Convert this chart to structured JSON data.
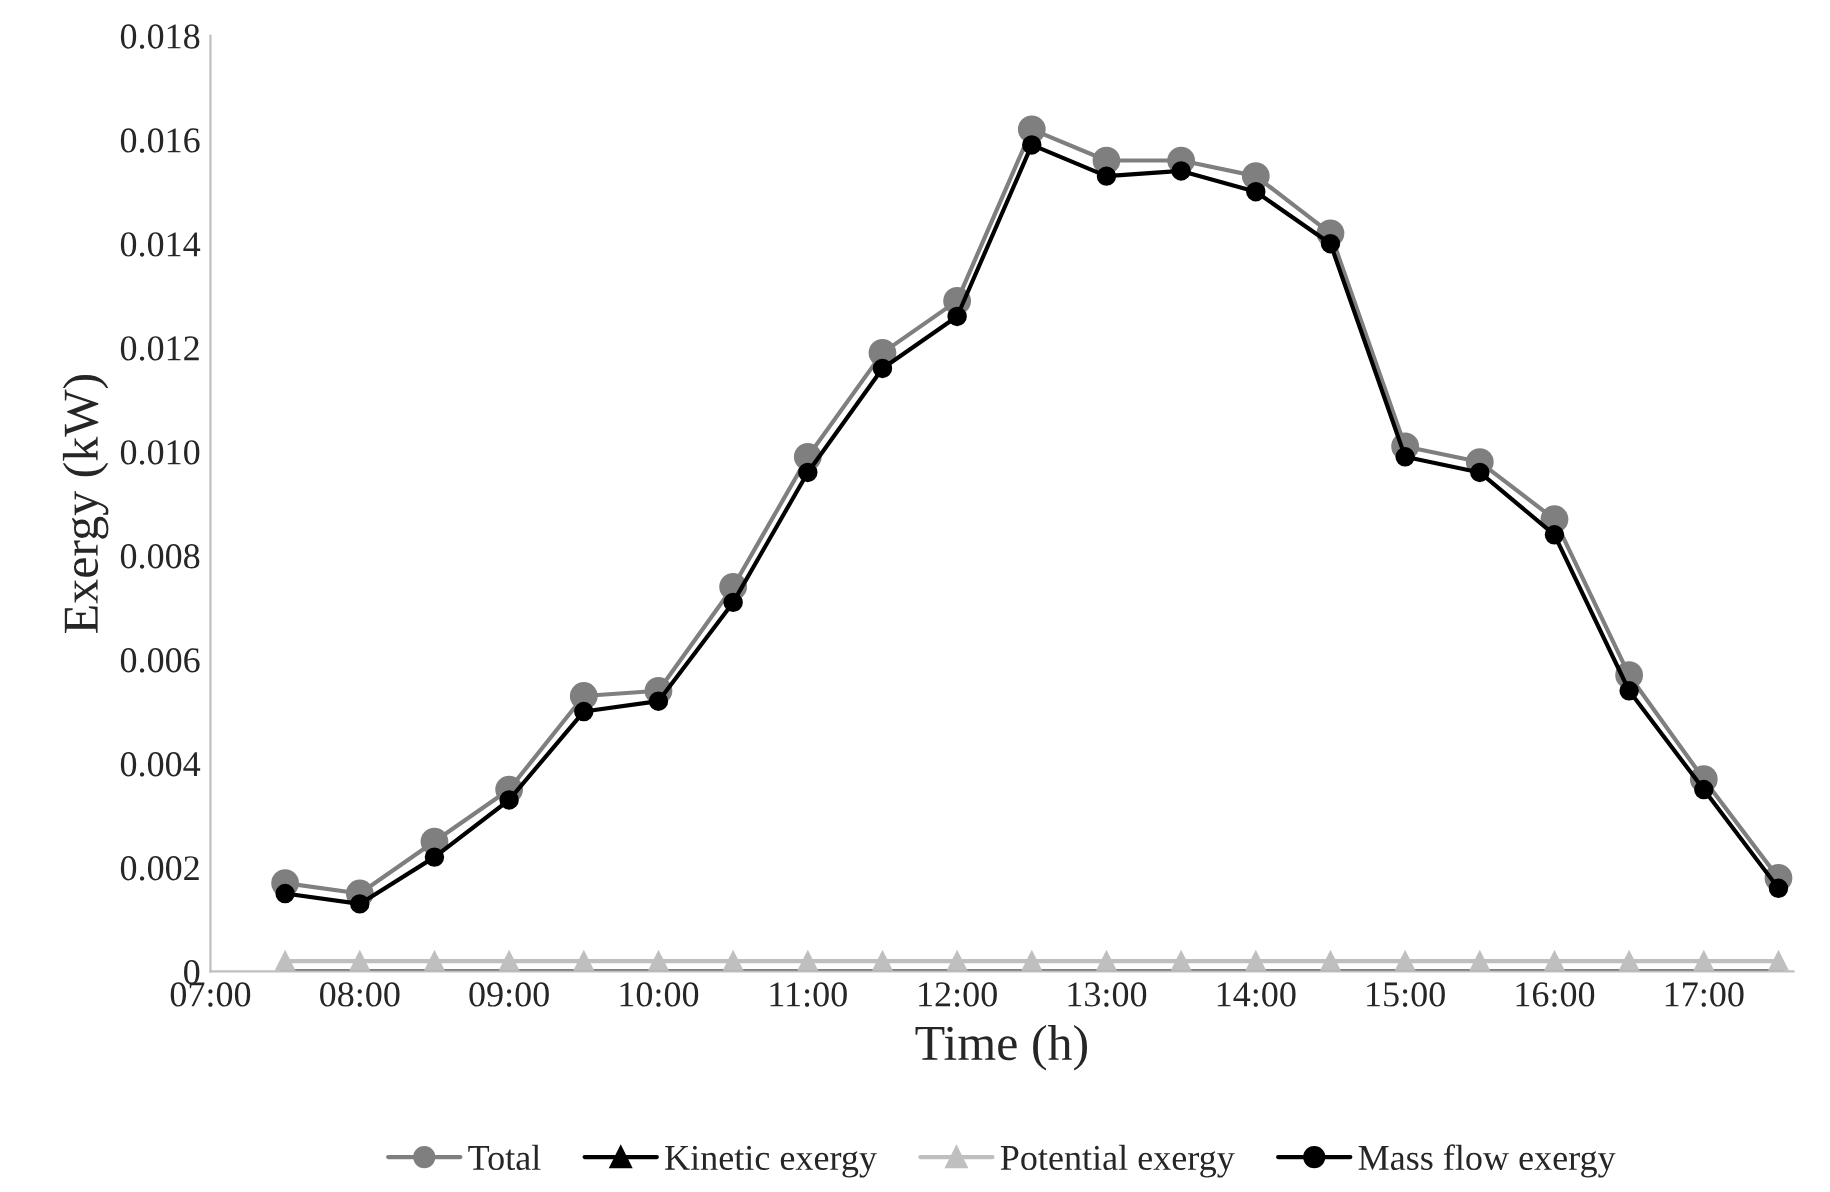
{
  "chart_data": {
    "type": "line",
    "xlabel": "Time (h)",
    "ylabel": "Exergy (kW)",
    "x": [
      7.5,
      8,
      8.5,
      9,
      9.5,
      10,
      10.5,
      11,
      11.5,
      12,
      12.5,
      13,
      13.5,
      14,
      14.5,
      15,
      15.5,
      16,
      16.5,
      17,
      17.5
    ],
    "series": [
      {
        "name": "Total",
        "color": "#7f7f7f",
        "marker": "circle",
        "values": [
          0.0017,
          0.0015,
          0.0025,
          0.0035,
          0.0053,
          0.0054,
          0.0074,
          0.0099,
          0.0119,
          0.0129,
          0.0162,
          0.0156,
          0.0156,
          0.0153,
          0.0142,
          0.0101,
          0.0098,
          0.0087,
          0.0057,
          0.0037,
          0.0018
        ]
      },
      {
        "name": "Kinetic exergy",
        "color": "#000000",
        "marker": "triangle",
        "values": [
          0,
          0,
          0,
          0,
          0,
          0,
          0,
          0,
          0,
          0,
          0,
          0,
          0,
          0,
          0,
          0,
          0,
          0,
          0,
          0,
          0
        ]
      },
      {
        "name": "Potential exergy",
        "color": "#bfbfbf",
        "marker": "triangle",
        "values": [
          0.0002,
          0.0002,
          0.0002,
          0.0002,
          0.0002,
          0.0002,
          0.0002,
          0.0002,
          0.0002,
          0.0002,
          0.0002,
          0.0002,
          0.0002,
          0.0002,
          0.0002,
          0.0002,
          0.0002,
          0.0002,
          0.0002,
          0.0002,
          0.0002
        ]
      },
      {
        "name": "Mass flow exergy",
        "color": "#000000",
        "marker": "circle",
        "values": [
          0.0015,
          0.0013,
          0.0022,
          0.0033,
          0.005,
          0.0052,
          0.0071,
          0.0096,
          0.0116,
          0.0126,
          0.0159,
          0.0153,
          0.0154,
          0.015,
          0.014,
          0.0099,
          0.0096,
          0.0084,
          0.0054,
          0.0035,
          0.0016
        ]
      }
    ],
    "xlim": [
      7,
      17.6
    ],
    "xticks": [
      {
        "value": 7,
        "label": "07:00"
      },
      {
        "value": 8,
        "label": "08:00"
      },
      {
        "value": 9,
        "label": "09:00"
      },
      {
        "value": 10,
        "label": "10:00"
      },
      {
        "value": 11,
        "label": "11:00"
      },
      {
        "value": 12,
        "label": "12:00"
      },
      {
        "value": 13,
        "label": "13:00"
      },
      {
        "value": 14,
        "label": "14:00"
      },
      {
        "value": 15,
        "label": "15:00"
      },
      {
        "value": 16,
        "label": "16:00"
      },
      {
        "value": 17,
        "label": "17:00"
      }
    ],
    "ylim": [
      0,
      0.018
    ],
    "yticks": [
      0,
      {
        "value": 0.002,
        "label": "0.002"
      },
      {
        "value": 0.004,
        "label": "0.004"
      },
      {
        "value": 0.006,
        "label": "0.006"
      },
      {
        "value": 0.008,
        "label": "0.008"
      },
      {
        "value": 0.01,
        "label": "0.010"
      },
      {
        "value": 0.012,
        "label": "0.012"
      },
      {
        "value": 0.014,
        "label": "0.014"
      },
      {
        "value": 0.016,
        "label": "0.016"
      },
      {
        "value": 0.018,
        "label": "0.018"
      }
    ],
    "grid": false,
    "legend": "bottom",
    "line_style": "solid"
  }
}
